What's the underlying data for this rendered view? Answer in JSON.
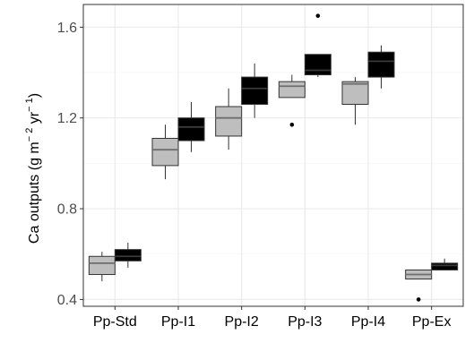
{
  "chart_data": {
    "type": "box",
    "title": "",
    "ylabel": {
      "text": "Ca outputs (g m",
      "exp1": "− 2",
      "mid": " yr",
      "exp2": "− 1",
      "end": ")"
    },
    "xlabel": "",
    "ylim": [
      0.37,
      1.7
    ],
    "yticks": [
      0.4,
      0.8,
      1.2,
      1.6
    ],
    "ytick_labels": [
      "0.4",
      "0.8",
      "1.2",
      "1.6"
    ],
    "grid": true,
    "legend": "none",
    "categories": [
      "Pp-Std",
      "Pp-I1",
      "Pp-I2",
      "Pp-I3",
      "Pp-I4",
      "Pp-Ex"
    ],
    "series": [
      {
        "fill": "#bebebe",
        "boxes": [
          {
            "category": "Pp-Std",
            "whislo": 0.48,
            "q1": 0.51,
            "med": 0.56,
            "q3": 0.59,
            "whishi": 0.61,
            "outliers": []
          },
          {
            "category": "Pp-I1",
            "whislo": 0.93,
            "q1": 0.99,
            "med": 1.06,
            "q3": 1.11,
            "whishi": 1.17,
            "outliers": []
          },
          {
            "category": "Pp-I2",
            "whislo": 1.06,
            "q1": 1.12,
            "med": 1.2,
            "q3": 1.25,
            "whishi": 1.33,
            "outliers": []
          },
          {
            "category": "Pp-I3",
            "whislo": 1.29,
            "q1": 1.29,
            "med": 1.34,
            "q3": 1.36,
            "whishi": 1.39,
            "outliers": [
              1.17
            ]
          },
          {
            "category": "Pp-I4",
            "whislo": 1.17,
            "q1": 1.26,
            "med": 1.35,
            "q3": 1.36,
            "whishi": 1.38,
            "outliers": []
          },
          {
            "category": "Pp-Ex",
            "whislo": 0.49,
            "q1": 0.49,
            "med": 0.51,
            "q3": 0.53,
            "whishi": 0.53,
            "outliers": [
              0.4
            ]
          }
        ]
      },
      {
        "fill": "#000000",
        "boxes": [
          {
            "category": "Pp-Std",
            "whislo": 0.54,
            "q1": 0.57,
            "med": 0.59,
            "q3": 0.62,
            "whishi": 0.65,
            "outliers": []
          },
          {
            "category": "Pp-I1",
            "whislo": 1.05,
            "q1": 1.1,
            "med": 1.16,
            "q3": 1.2,
            "whishi": 1.27,
            "outliers": []
          },
          {
            "category": "Pp-I2",
            "whislo": 1.2,
            "q1": 1.26,
            "med": 1.33,
            "q3": 1.38,
            "whishi": 1.44,
            "outliers": []
          },
          {
            "category": "Pp-I3",
            "whislo": 1.38,
            "q1": 1.39,
            "med": 1.41,
            "q3": 1.48,
            "whishi": 1.48,
            "outliers": [
              1.65
            ]
          },
          {
            "category": "Pp-I4",
            "whislo": 1.33,
            "q1": 1.38,
            "med": 1.45,
            "q3": 1.49,
            "whishi": 1.52,
            "outliers": []
          },
          {
            "category": "Pp-Ex",
            "whislo": 0.53,
            "q1": 0.53,
            "med": 0.55,
            "q3": 0.56,
            "whishi": 0.58,
            "outliers": []
          }
        ]
      }
    ],
    "colors": {
      "panel_bg": "#ffffff",
      "grid_major": "#ebebeb",
      "grid_minor": "#f5f5f5",
      "panel_border": "#333333",
      "median_light": "#6e6e6e",
      "median_dark": "#3a3a3a"
    }
  }
}
